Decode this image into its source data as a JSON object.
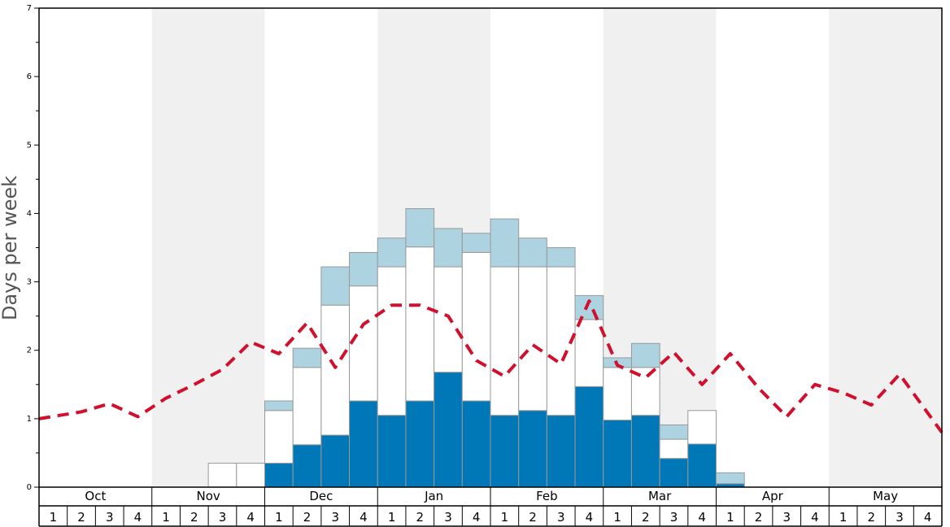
{
  "chart_data": {
    "type": "stacked-bar-with-line",
    "ylabel": "Days per week",
    "ylim": [
      0,
      7
    ],
    "yticks": [
      "0",
      "1",
      "2",
      "3",
      "4",
      "5",
      "6",
      "7"
    ],
    "months": [
      "Oct",
      "Nov",
      "Dec",
      "Jan",
      "Feb",
      "Mar",
      "Apr",
      "May"
    ],
    "weeks_per_month": 4,
    "week_labels": [
      "1",
      "2",
      "3",
      "4"
    ],
    "shaded_months": [
      "Nov",
      "Jan",
      "Mar",
      "May"
    ],
    "colors": {
      "series_dark": "#0077b6",
      "series_white": "#ffffff",
      "series_light": "#add3e0",
      "line": "#d0102c",
      "shade": "#f0f0f0"
    },
    "series": [
      {
        "name": "dark-blue",
        "values": [
          0,
          0,
          0,
          0,
          0,
          0,
          0,
          0,
          0.35,
          0.62,
          0.76,
          1.26,
          1.05,
          1.26,
          1.68,
          1.26,
          1.05,
          1.12,
          1.05,
          1.47,
          0.98,
          1.05,
          0.42,
          0.63,
          0.05,
          0,
          0,
          0,
          0,
          0,
          0,
          0
        ]
      },
      {
        "name": "white",
        "values": [
          0,
          0,
          0,
          0,
          0,
          0,
          0.35,
          0.35,
          0.77,
          1.13,
          1.9,
          1.68,
          2.17,
          2.25,
          1.54,
          2.17,
          2.17,
          2.1,
          2.17,
          0.98,
          0.77,
          0.7,
          0.28,
          0.49,
          0,
          0,
          0,
          0,
          0,
          0,
          0,
          0
        ]
      },
      {
        "name": "light-blue",
        "values": [
          0,
          0,
          0,
          0,
          0,
          0,
          0,
          0,
          0.14,
          0.28,
          0.56,
          0.49,
          0.42,
          0.56,
          0.56,
          0.28,
          0.7,
          0.42,
          0.28,
          0.35,
          0.14,
          0.35,
          0.21,
          0,
          0.16,
          0,
          0,
          0,
          0,
          0,
          0,
          0
        ]
      },
      {
        "name": "average",
        "type": "line",
        "values": [
          1.0,
          1.1,
          1.22,
          1.03,
          1.3,
          1.5,
          1.72,
          2.12,
          1.95,
          2.4,
          1.75,
          2.38,
          2.66,
          2.66,
          2.5,
          1.85,
          1.62,
          2.08,
          1.8,
          2.72,
          1.78,
          1.6,
          1.97,
          1.5,
          1.95,
          1.45,
          1.03,
          1.5,
          1.38,
          1.2,
          1.65,
          0.8
        ]
      }
    ]
  }
}
